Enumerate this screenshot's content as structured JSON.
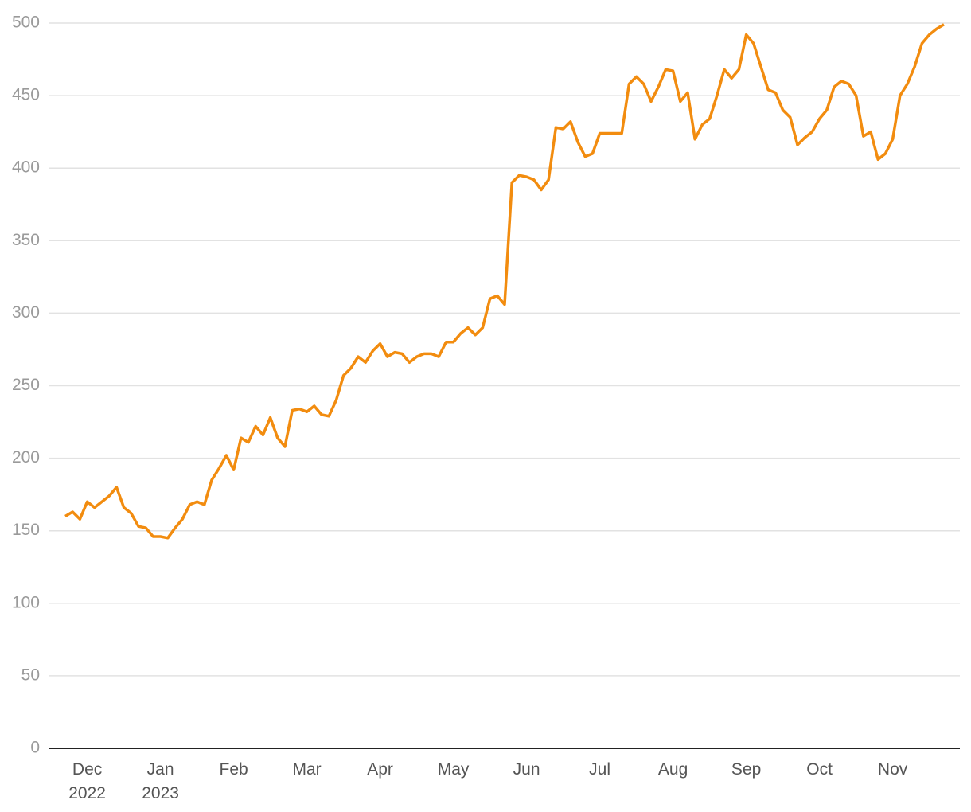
{
  "chart_data": {
    "type": "line",
    "categories": [
      null,
      null,
      null,
      "Dec 2022",
      null,
      null,
      null,
      null,
      null,
      null,
      null,
      null,
      null,
      "Jan 2023",
      null,
      null,
      null,
      null,
      null,
      null,
      null,
      null,
      null,
      "Feb",
      null,
      null,
      null,
      null,
      null,
      null,
      null,
      null,
      null,
      "Mar",
      null,
      null,
      null,
      null,
      null,
      null,
      null,
      null,
      null,
      "Apr",
      null,
      null,
      null,
      null,
      null,
      null,
      null,
      null,
      null,
      "May",
      null,
      null,
      null,
      null,
      null,
      null,
      null,
      null,
      null,
      "Jun",
      null,
      null,
      null,
      null,
      null,
      null,
      null,
      null,
      null,
      "Jul",
      null,
      null,
      null,
      null,
      null,
      null,
      null,
      null,
      null,
      "Aug",
      null,
      null,
      null,
      null,
      null,
      null,
      null,
      null,
      null,
      "Sep",
      null,
      null,
      null,
      null,
      null,
      null,
      null,
      null,
      null,
      "Oct",
      null,
      null,
      null,
      null,
      null,
      null,
      null,
      null,
      null,
      "Nov",
      null,
      null,
      null,
      null,
      null,
      null,
      null
    ],
    "series": [
      {
        "color": "#f28c0f",
        "values": [
          160,
          163,
          158,
          170,
          166,
          170,
          174,
          180,
          166,
          162,
          153,
          152,
          146,
          146,
          145,
          152,
          158,
          168,
          170,
          168,
          185,
          193,
          202,
          192,
          214,
          211,
          222,
          216,
          228,
          214,
          208,
          233,
          234,
          232,
          236,
          230,
          229,
          240,
          257,
          262,
          270,
          266,
          274,
          279,
          270,
          273,
          272,
          266,
          270,
          272,
          272,
          270,
          280,
          280,
          286,
          290,
          285,
          290,
          310,
          312,
          306,
          390,
          395,
          394,
          392,
          385,
          392,
          428,
          427,
          432,
          418,
          408,
          410,
          424,
          424,
          424,
          424,
          458,
          463,
          458,
          446,
          456,
          468,
          467,
          446,
          452,
          420,
          430,
          434,
          450,
          468,
          462,
          468,
          492,
          486,
          470,
          454,
          452,
          440,
          435,
          416,
          421,
          425,
          434,
          440,
          456,
          460,
          458,
          450,
          422,
          425,
          406,
          410,
          420,
          450,
          458,
          470,
          486,
          492,
          496,
          499
        ]
      }
    ],
    "ylim": [
      0,
      500
    ],
    "yticks": [
      0,
      50,
      100,
      150,
      200,
      250,
      300,
      350,
      400,
      450,
      500
    ],
    "grid": true
  }
}
